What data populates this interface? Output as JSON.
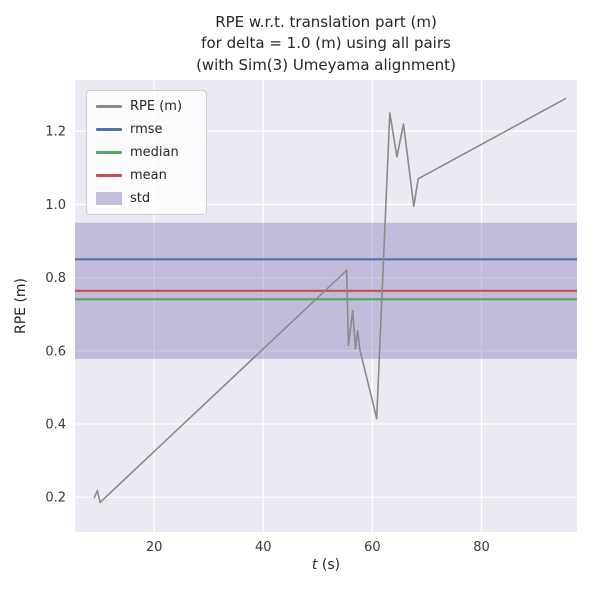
{
  "chart_data": {
    "type": "line",
    "title": "RPE w.r.t. translation part (m)\nfor delta = 1.0 (m) using all pairs\n(with Sim(3) Umeyama alignment)",
    "xlabel_var": "t",
    "xlabel_unit": " (s)",
    "ylabel": "RPE (m)",
    "xlim": [
      5.5,
      97.5
    ],
    "ylim": [
      0.105,
      1.34
    ],
    "x_ticks": [
      20,
      40,
      60,
      80
    ],
    "y_ticks": [
      0.2,
      0.4,
      0.6,
      0.8,
      1.0,
      1.2
    ],
    "grid": true,
    "legend_position": "upper-left",
    "series": {
      "name": "RPE (m)",
      "color": "#8a8a8a",
      "points": [
        [
          9.0,
          0.197
        ],
        [
          9.6,
          0.218
        ],
        [
          10.1,
          0.186
        ],
        [
          55.3,
          0.82
        ],
        [
          55.6,
          0.615
        ],
        [
          56.4,
          0.71
        ],
        [
          56.9,
          0.605
        ],
        [
          57.3,
          0.655
        ],
        [
          57.7,
          0.604
        ],
        [
          60.8,
          0.415
        ],
        [
          63.2,
          1.25
        ],
        [
          64.5,
          1.13
        ],
        [
          65.7,
          1.22
        ],
        [
          67.6,
          0.995
        ],
        [
          68.4,
          1.07
        ],
        [
          95.5,
          1.29
        ]
      ]
    },
    "stats": {
      "rmse": 0.85,
      "mean": 0.764,
      "median": 0.741,
      "std": 0.186
    },
    "hlines": [
      {
        "name": "rmse",
        "value": 0.85,
        "color": "#4c72b0"
      },
      {
        "name": "median",
        "value": 0.741,
        "color": "#55a868"
      },
      {
        "name": "mean",
        "value": 0.764,
        "color": "#c44e52"
      }
    ],
    "band": {
      "name": "std",
      "low": 0.578,
      "high": 0.95,
      "color": "#8172b2",
      "opacity": 0.38
    },
    "legend": [
      {
        "label": "RPE (m)",
        "type": "line",
        "color": "#8a8a8a"
      },
      {
        "label": "rmse",
        "type": "line",
        "color": "#4c72b0"
      },
      {
        "label": "median",
        "type": "line",
        "color": "#55a868"
      },
      {
        "label": "mean",
        "type": "line",
        "color": "#c44e52"
      },
      {
        "label": "std",
        "type": "patch",
        "color": "#8172b2",
        "opacity": 0.45
      }
    ],
    "colors": {
      "axes_bg": "#eaeaf2",
      "grid": "#ffffff",
      "tick_text": "#3a3a3a"
    }
  }
}
